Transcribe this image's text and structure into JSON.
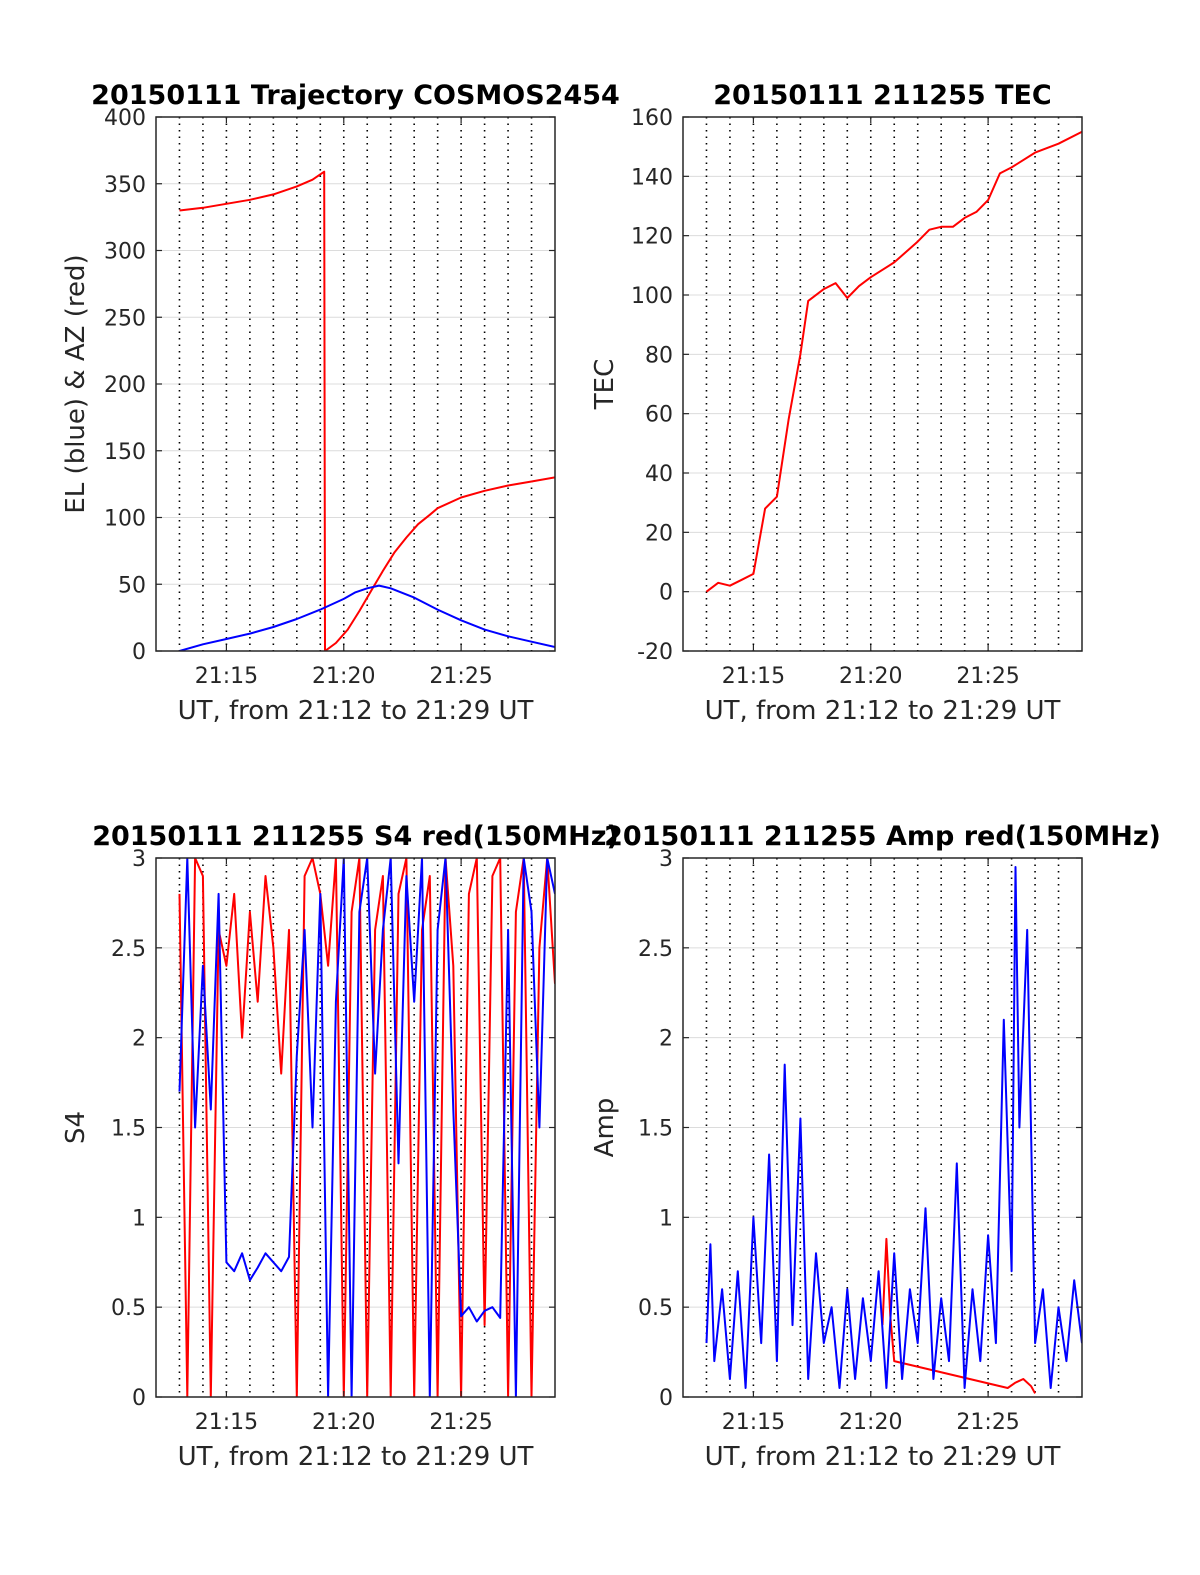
{
  "figure": {
    "x_axis_label": "UT, from 21:12 to 21:29 UT",
    "x_tick_labels": [
      "21:15",
      "21:20",
      "21:25"
    ],
    "colors": {
      "red": "#ff0000",
      "blue": "#0000ff",
      "grid": "#dcdcdc",
      "vgrid": "#000000"
    }
  },
  "chart_data": [
    {
      "type": "line",
      "title": "20150111 Trajectory COSMOS2454",
      "xlabel": "UT, from 21:12 to 21:29 UT",
      "ylabel": "EL (blue) & AZ (red)",
      "xlim": [
        "21:12:00",
        "21:29:00"
      ],
      "ylim": [
        0,
        400
      ],
      "yticks": [
        0,
        50,
        100,
        150,
        200,
        250,
        300,
        350,
        400
      ],
      "xtick_labels": [
        "21:15",
        "21:20",
        "21:25"
      ],
      "series": [
        {
          "color": "#ff0000",
          "x": [
            "21:13:00",
            "21:14:00",
            "21:15:00",
            "21:16:00",
            "21:17:00",
            "21:18:00",
            "21:18:40",
            "21:19:10",
            "21:19:12",
            "21:19:40",
            "21:20:10",
            "21:20:40",
            "21:21:10",
            "21:21:40",
            "21:22:10",
            "21:22:40",
            "21:23:10",
            "21:23:40",
            "21:24:00",
            "21:25:00",
            "21:26:00",
            "21:27:00",
            "21:28:00",
            "21:29:00"
          ],
          "values": [
            330,
            332,
            335,
            338,
            342,
            348,
            353,
            359,
            0,
            6,
            16,
            30,
            45,
            60,
            74,
            85,
            95,
            102,
            107,
            115,
            120,
            124,
            127,
            130
          ]
        },
        {
          "color": "#0000ff",
          "x": [
            "21:13:00",
            "21:14:00",
            "21:15:00",
            "21:16:00",
            "21:17:00",
            "21:18:00",
            "21:19:00",
            "21:20:00",
            "21:20:30",
            "21:21:00",
            "21:21:30",
            "21:22:00",
            "21:23:00",
            "21:24:00",
            "21:25:00",
            "21:26:00",
            "21:27:00",
            "21:28:00",
            "21:29:00"
          ],
          "values": [
            0,
            5,
            9,
            13,
            18,
            24,
            31,
            39,
            44,
            47,
            49,
            47,
            40,
            31,
            23,
            16,
            11,
            7,
            3
          ]
        }
      ]
    },
    {
      "type": "line",
      "title": "20150111 211255 TEC",
      "xlabel": "UT, from 21:12 to 21:29 UT",
      "ylabel": "TEC",
      "xlim": [
        "21:12:00",
        "21:29:00"
      ],
      "ylim": [
        -20,
        160
      ],
      "yticks": [
        -20,
        0,
        20,
        40,
        60,
        80,
        100,
        120,
        140,
        160
      ],
      "xtick_labels": [
        "21:15",
        "21:20",
        "21:25"
      ],
      "series": [
        {
          "color": "#ff0000",
          "x": [
            "21:13:00",
            "21:13:30",
            "21:14:00",
            "21:14:30",
            "21:15:00",
            "21:15:30",
            "21:16:00",
            "21:16:30",
            "21:17:00",
            "21:17:20",
            "21:18:00",
            "21:18:30",
            "21:19:00",
            "21:19:30",
            "21:20:00",
            "21:21:00",
            "21:22:00",
            "21:22:30",
            "21:23:00",
            "21:23:30",
            "21:24:00",
            "21:24:30",
            "21:25:00",
            "21:25:30",
            "21:26:00",
            "21:27:00",
            "21:28:00",
            "21:29:00"
          ],
          "values": [
            0,
            3,
            2,
            4,
            6,
            28,
            32,
            58,
            80,
            98,
            102,
            104,
            99,
            103,
            106,
            111,
            118,
            122,
            123,
            123,
            126,
            128,
            132,
            141,
            143,
            148,
            151,
            155
          ]
        }
      ]
    },
    {
      "type": "line",
      "title": "20150111 211255 S4 red(150MHz)",
      "xlabel": "UT, from 21:12 to 21:29 UT",
      "ylabel": "S4",
      "xlim": [
        "21:12:00",
        "21:29:00"
      ],
      "ylim": [
        0,
        3
      ],
      "yticks": [
        0,
        0.5,
        1,
        1.5,
        2,
        2.5,
        3
      ],
      "ytick_labels": [
        "0",
        "0.5",
        "1",
        "1.5",
        "2",
        "2.5",
        "3"
      ],
      "xtick_labels": [
        "21:15",
        "21:20",
        "21:25"
      ],
      "series": [
        {
          "color": "#ff0000",
          "x": [
            "21:13:00",
            "21:13:20",
            "21:13:40",
            "21:14:00",
            "21:14:20",
            "21:14:40",
            "21:15:00",
            "21:15:20",
            "21:15:40",
            "21:16:00",
            "21:16:20",
            "21:16:40",
            "21:17:00",
            "21:17:20",
            "21:17:40",
            "21:18:00",
            "21:18:20",
            "21:18:40",
            "21:19:00",
            "21:19:20",
            "21:19:40",
            "21:20:00",
            "21:20:20",
            "21:20:40",
            "21:21:00",
            "21:21:20",
            "21:21:40",
            "21:22:00",
            "21:22:20",
            "21:22:40",
            "21:23:00",
            "21:23:20",
            "21:23:40",
            "21:24:00",
            "21:24:20",
            "21:24:40",
            "21:25:00",
            "21:25:20",
            "21:25:40",
            "21:26:00",
            "21:26:20",
            "21:26:40",
            "21:27:00",
            "21:27:20",
            "21:27:40",
            "21:28:00",
            "21:28:20",
            "21:28:40",
            "21:29:00"
          ],
          "values": [
            2.8,
            0,
            3,
            2.9,
            0,
            2.6,
            2.4,
            2.8,
            2.0,
            2.7,
            2.2,
            2.9,
            2.5,
            1.8,
            2.6,
            0,
            2.9,
            3,
            2.8,
            2.4,
            3,
            0,
            2.7,
            3,
            0,
            2.6,
            2.9,
            0,
            2.8,
            3,
            0,
            2.6,
            2.9,
            0,
            3,
            2.4,
            0,
            2.8,
            3,
            0.4,
            2.9,
            3,
            0,
            2.7,
            3,
            0,
            2.5,
            3,
            2.3
          ]
        },
        {
          "color": "#0000ff",
          "x": [
            "21:13:00",
            "21:13:20",
            "21:13:40",
            "21:14:00",
            "21:14:20",
            "21:14:40",
            "21:15:00",
            "21:15:20",
            "21:15:40",
            "21:16:00",
            "21:16:20",
            "21:16:40",
            "21:17:00",
            "21:17:20",
            "21:17:40",
            "21:18:00",
            "21:18:20",
            "21:18:40",
            "21:19:00",
            "21:19:20",
            "21:19:40",
            "21:20:00",
            "21:20:20",
            "21:20:40",
            "21:21:00",
            "21:21:20",
            "21:21:40",
            "21:22:00",
            "21:22:20",
            "21:22:40",
            "21:23:00",
            "21:23:20",
            "21:23:40",
            "21:24:00",
            "21:24:20",
            "21:24:40",
            "21:25:00",
            "21:25:20",
            "21:25:40",
            "21:26:00",
            "21:26:20",
            "21:26:40",
            "21:27:00",
            "21:27:20",
            "21:27:40",
            "21:28:00",
            "21:28:20",
            "21:28:40",
            "21:29:00"
          ],
          "values": [
            1.7,
            3,
            1.5,
            2.4,
            1.6,
            2.8,
            0.75,
            0.7,
            0.8,
            0.65,
            0.72,
            0.8,
            0.75,
            0.7,
            0.78,
            1.9,
            2.6,
            1.5,
            2.8,
            0,
            2.2,
            3,
            0,
            2.7,
            3,
            1.8,
            2.6,
            3,
            1.3,
            2.9,
            2.2,
            3,
            0,
            2.6,
            3,
            1.6,
            0.45,
            0.5,
            0.42,
            0.48,
            0.5,
            0.44,
            2.6,
            0,
            3,
            2.7,
            1.5,
            3,
            2.8
          ]
        }
      ]
    },
    {
      "type": "line",
      "title": "20150111 211255 Amp red(150MHz)",
      "xlabel": "UT, from 21:12 to 21:29 UT",
      "ylabel": "Amp",
      "xlim": [
        "21:12:00",
        "21:29:00"
      ],
      "ylim": [
        0,
        3
      ],
      "yticks": [
        0,
        0.5,
        1,
        1.5,
        2,
        2.5,
        3
      ],
      "ytick_labels": [
        "0",
        "0.5",
        "1",
        "1.5",
        "2",
        "2.5",
        "3"
      ],
      "xtick_labels": [
        "21:15",
        "21:20",
        "21:25"
      ],
      "series": [
        {
          "color": "#ff0000",
          "x": [
            "21:20:30",
            "21:20:40",
            "21:20:50",
            "21:21:00",
            "21:25:50",
            "21:26:10",
            "21:26:30",
            "21:26:50",
            "21:27:00"
          ],
          "values": [
            0.4,
            0.88,
            0.45,
            0.2,
            0.05,
            0.08,
            0.1,
            0.06,
            0.02
          ]
        },
        {
          "color": "#0000ff",
          "x": [
            "21:13:00",
            "21:13:10",
            "21:13:20",
            "21:13:40",
            "21:14:00",
            "21:14:20",
            "21:14:40",
            "21:15:00",
            "21:15:20",
            "21:15:40",
            "21:16:00",
            "21:16:20",
            "21:16:40",
            "21:17:00",
            "21:17:20",
            "21:17:40",
            "21:18:00",
            "21:18:20",
            "21:18:40",
            "21:19:00",
            "21:19:20",
            "21:19:40",
            "21:20:00",
            "21:20:20",
            "21:20:40",
            "21:21:00",
            "21:21:20",
            "21:21:40",
            "21:22:00",
            "21:22:20",
            "21:22:40",
            "21:23:00",
            "21:23:20",
            "21:23:40",
            "21:24:00",
            "21:24:20",
            "21:24:40",
            "21:25:00",
            "21:25:20",
            "21:25:40",
            "21:26:00",
            "21:26:10",
            "21:26:20",
            "21:26:40",
            "21:27:00",
            "21:27:20",
            "21:27:40",
            "21:28:00",
            "21:28:20",
            "21:28:40",
            "21:29:00"
          ],
          "values": [
            0.3,
            0.85,
            0.2,
            0.6,
            0.1,
            0.7,
            0.05,
            1.0,
            0.3,
            1.35,
            0.2,
            1.85,
            0.4,
            1.55,
            0.1,
            0.8,
            0.3,
            0.5,
            0.05,
            0.6,
            0.1,
            0.55,
            0.2,
            0.7,
            0.05,
            0.8,
            0.1,
            0.6,
            0.3,
            1.05,
            0.1,
            0.55,
            0.2,
            1.3,
            0.05,
            0.6,
            0.2,
            0.9,
            0.3,
            2.1,
            0.7,
            2.95,
            1.5,
            2.6,
            0.3,
            0.6,
            0.05,
            0.5,
            0.2,
            0.65,
            0.3
          ]
        }
      ]
    }
  ]
}
